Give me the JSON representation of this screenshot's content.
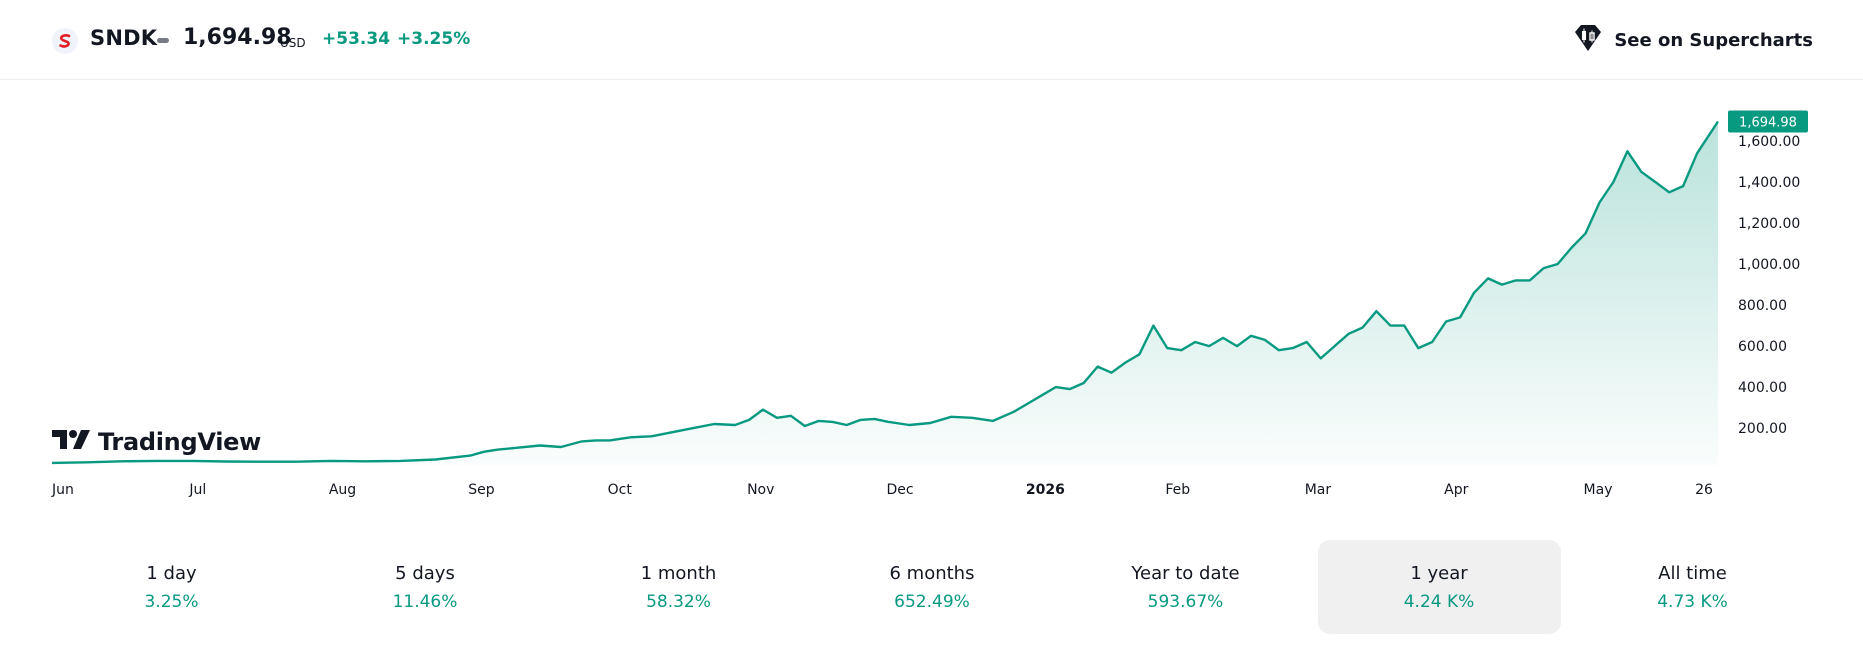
{
  "header": {
    "ticker": "SNDK",
    "price": "1,694.98",
    "currency": "USD",
    "change": "+53.34",
    "change_pct": "+3.25%",
    "supercharts_label": "See on Supercharts"
  },
  "brand": {
    "name": "TradingView"
  },
  "colors": {
    "accent": "#089981",
    "line": "#089981",
    "text": "#131722",
    "logo_red": "#e01f26",
    "active_tab_bg": "#f0f0f0"
  },
  "chart_data": {
    "type": "area",
    "last_price_label": "1,694.98",
    "x_ticks": [
      {
        "label": "Jun",
        "bold": false
      },
      {
        "label": "Jul",
        "bold": false
      },
      {
        "label": "Aug",
        "bold": false
      },
      {
        "label": "Sep",
        "bold": false
      },
      {
        "label": "Oct",
        "bold": false
      },
      {
        "label": "Nov",
        "bold": false
      },
      {
        "label": "Dec",
        "bold": false
      },
      {
        "label": "2026",
        "bold": true
      },
      {
        "label": "Feb",
        "bold": false
      },
      {
        "label": "Mar",
        "bold": false
      },
      {
        "label": "Apr",
        "bold": false
      },
      {
        "label": "May",
        "bold": false
      },
      {
        "label": "26",
        "bold": false
      }
    ],
    "y_ticks": [
      "200.00",
      "400.00",
      "600.00",
      "800.00",
      "1,000.00",
      "1,200.00",
      "1,400.00",
      "1,600.00"
    ],
    "y_tick_values": [
      200,
      400,
      600,
      800,
      1000,
      1200,
      1400,
      1600
    ],
    "ylim": [
      20,
      1800
    ],
    "x_month_index": [
      0,
      1,
      2,
      3,
      4,
      5,
      6,
      7,
      8,
      9,
      10,
      11,
      11.8
    ],
    "xlim": [
      0,
      11.95
    ],
    "series": [
      {
        "x": [
          0,
          0.25,
          0.5,
          0.75,
          1,
          1.25,
          1.5,
          1.75,
          2,
          2.25,
          2.5,
          2.75,
          3,
          3.1,
          3.2,
          3.35,
          3.5,
          3.65,
          3.8,
          3.9,
          4,
          4.15,
          4.3,
          4.45,
          4.6,
          4.75,
          4.9,
          5,
          5.1,
          5.2,
          5.3,
          5.4,
          5.5,
          5.6,
          5.7,
          5.8,
          5.9,
          6,
          6.15,
          6.3,
          6.45,
          6.6,
          6.75,
          6.9,
          7,
          7.1,
          7.2,
          7.3,
          7.4,
          7.5,
          7.6,
          7.7,
          7.8,
          7.9,
          8,
          8.1,
          8.2,
          8.3,
          8.4,
          8.5,
          8.6,
          8.7,
          8.8,
          8.9,
          9,
          9.1,
          9.2,
          9.3,
          9.4,
          9.5,
          9.6,
          9.7,
          9.8,
          9.9,
          10,
          10.1,
          10.2,
          10.3,
          10.4,
          10.5,
          10.6,
          10.7,
          10.8,
          10.9,
          11,
          11.1,
          11.2,
          11.3,
          11.4,
          11.5,
          11.6,
          11.7,
          11.8,
          11.95
        ],
        "y": [
          30,
          33,
          38,
          40,
          40,
          37,
          36,
          36,
          40,
          38,
          40,
          47,
          66,
          85,
          95,
          105,
          115,
          108,
          135,
          140,
          140,
          155,
          160,
          180,
          200,
          220,
          215,
          240,
          290,
          250,
          260,
          210,
          235,
          230,
          215,
          240,
          245,
          230,
          215,
          225,
          255,
          250,
          235,
          280,
          320,
          360,
          400,
          390,
          420,
          500,
          470,
          520,
          560,
          700,
          590,
          580,
          620,
          600,
          640,
          600,
          650,
          630,
          580,
          590,
          620,
          540,
          600,
          660,
          690,
          770,
          700,
          700,
          590,
          620,
          720,
          740,
          860,
          930,
          900,
          920,
          920,
          980,
          1000,
          1080,
          1150,
          1300,
          1400,
          1550,
          1450,
          1400,
          1350,
          1380,
          1540,
          1694.98
        ]
      }
    ],
    "periods": [
      {
        "label": "1 day",
        "value": "3.25%",
        "active": false
      },
      {
        "label": "5 days",
        "value": "11.46%",
        "active": false
      },
      {
        "label": "1 month",
        "value": "58.32%",
        "active": false
      },
      {
        "label": "6 months",
        "value": "652.49%",
        "active": false
      },
      {
        "label": "Year to date",
        "value": "593.67%",
        "active": false
      },
      {
        "label": "1 year",
        "value": "4.24 K%",
        "active": true
      },
      {
        "label": "All time",
        "value": "4.73 K%",
        "active": false
      }
    ]
  },
  "icons": {
    "logo": "sandisk-s-icon",
    "supercharts": "supercharts-icon",
    "tradingview": "tradingview-logo-icon"
  }
}
